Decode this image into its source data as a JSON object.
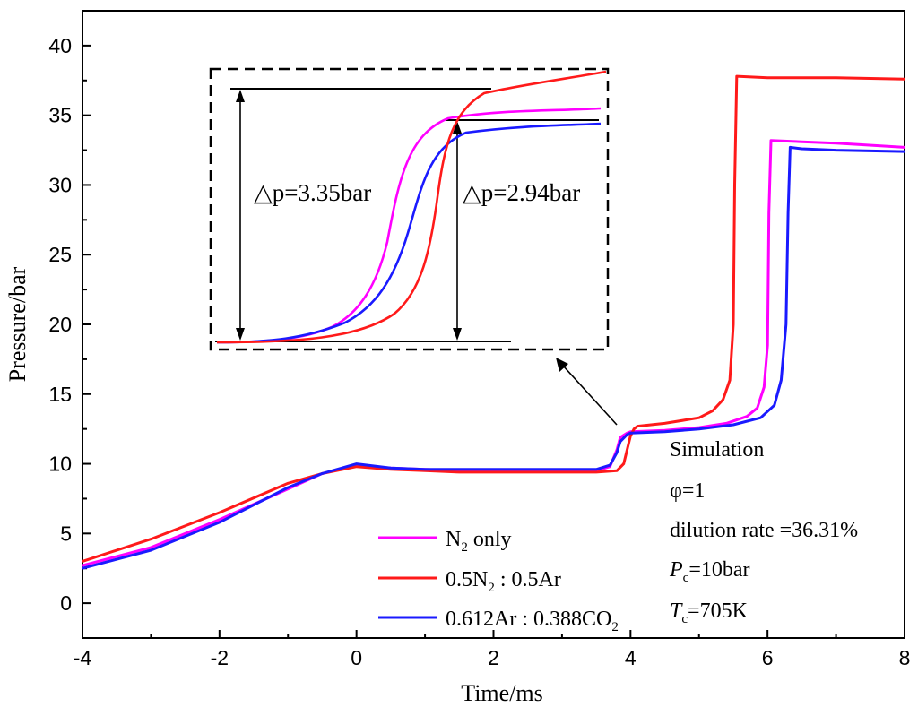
{
  "chart_data": {
    "type": "line",
    "xlabel": "Time/ms",
    "ylabel": "Pressure/bar",
    "xlim": [
      -4,
      8
    ],
    "ylim": [
      -2.5,
      42.5
    ],
    "x_ticks": [
      "-4",
      "-2",
      "0",
      "2",
      "4",
      "6",
      "8"
    ],
    "y_ticks": [
      "0",
      "5",
      "10",
      "15",
      "20",
      "25",
      "30",
      "35",
      "40"
    ],
    "series": [
      {
        "name": "N2 only",
        "color": "#ff00ff",
        "x": [
          -4,
          -3,
          -2,
          -1,
          -0.5,
          0,
          0.5,
          1,
          1.5,
          2,
          3,
          3.5,
          3.7,
          3.8,
          3.85,
          3.95,
          4,
          4.5,
          5,
          5.4,
          5.7,
          5.85,
          5.95,
          6.0,
          6.02,
          6.05,
          6.5,
          7,
          8
        ],
        "values": [
          2.7,
          4.0,
          6.0,
          8.2,
          9.3,
          9.9,
          9.7,
          9.6,
          9.5,
          9.5,
          9.5,
          9.5,
          9.8,
          11.0,
          11.9,
          12.2,
          12.3,
          12.4,
          12.6,
          12.9,
          13.4,
          14.0,
          15.5,
          18.5,
          28.0,
          33.2,
          33.1,
          33.0,
          32.7
        ]
      },
      {
        "name": "0.5N2 : 0.5Ar",
        "color": "#ff1a1a",
        "x": [
          -4,
          -3,
          -2,
          -1,
          -0.5,
          0,
          0.5,
          1,
          1.5,
          2,
          3,
          3.5,
          3.8,
          3.9,
          3.95,
          4.0,
          4.05,
          4.1,
          4.5,
          5,
          5.2,
          5.35,
          5.45,
          5.5,
          5.52,
          5.55,
          6,
          7,
          8
        ],
        "values": [
          3.0,
          4.6,
          6.5,
          8.6,
          9.3,
          9.8,
          9.6,
          9.5,
          9.4,
          9.4,
          9.4,
          9.4,
          9.5,
          10.0,
          11.0,
          12.0,
          12.5,
          12.7,
          12.9,
          13.3,
          13.8,
          14.6,
          16.0,
          20.0,
          30.0,
          37.8,
          37.7,
          37.7,
          37.6
        ]
      },
      {
        "name": "0.612Ar : 0.388CO2",
        "color": "#1a1aff",
        "x": [
          -4,
          -3,
          -2,
          -1,
          -0.5,
          0,
          0.5,
          1,
          1.5,
          2,
          3,
          3.5,
          3.7,
          3.8,
          3.85,
          3.95,
          4,
          4.5,
          5,
          5.5,
          5.9,
          6.1,
          6.2,
          6.27,
          6.3,
          6.33,
          6.5,
          7,
          8
        ],
        "values": [
          2.5,
          3.8,
          5.8,
          8.3,
          9.3,
          10.0,
          9.7,
          9.6,
          9.6,
          9.6,
          9.6,
          9.6,
          9.9,
          10.8,
          11.6,
          12.1,
          12.2,
          12.3,
          12.5,
          12.8,
          13.3,
          14.2,
          16.0,
          20.0,
          28.0,
          32.7,
          32.6,
          32.5,
          32.4
        ]
      }
    ],
    "legend": {
      "placement": "bottom-center",
      "entries": [
        {
          "main": "N",
          "sub": "2",
          "rest": " only"
        },
        {
          "main": "0.5N",
          "sub": "2",
          "rest": " : 0.5Ar"
        },
        {
          "main": "0.612Ar : 0.388CO",
          "sub": "2",
          "rest": ""
        }
      ]
    },
    "annotations": {
      "simulation": "Simulation",
      "phi": "φ=1",
      "dilution": "dilution rate =36.31%",
      "pc_var": "P",
      "pc_sub": "c",
      "pc_val": "=10bar",
      "tc_var": "T",
      "tc_sub": "c",
      "tc_val": "=705K",
      "dp1": "△p=3.35bar",
      "dp2": "△p=2.94bar"
    },
    "inset": {
      "description_series_order": [
        "N2 only",
        "0.5N2 : 0.5Ar",
        "0.612Ar : 0.388CO2"
      ],
      "delta_p_values": [
        3.35,
        2.94
      ]
    }
  }
}
